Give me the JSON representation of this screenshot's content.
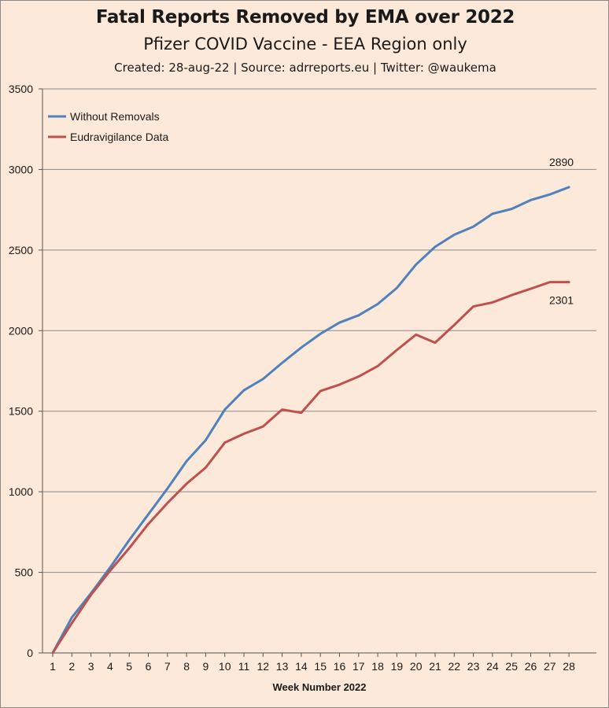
{
  "chart_data": {
    "type": "line",
    "title": "Fatal Reports Removed by EMA over 2022",
    "subtitle": "Pfizer COVID Vaccine - EEA Region only",
    "credit": "Created: 28-aug-22 | Source: adrreports.eu | Twitter: @waukema",
    "xlabel": "Week Number 2022",
    "ylabel": "",
    "ylim": [
      0,
      3500
    ],
    "yticks": [
      0,
      500,
      1000,
      1500,
      2000,
      2500,
      3000,
      3500
    ],
    "x": [
      1,
      2,
      3,
      4,
      5,
      6,
      7,
      8,
      9,
      10,
      11,
      12,
      13,
      14,
      15,
      16,
      17,
      18,
      19,
      20,
      21,
      22,
      23,
      24,
      25,
      26,
      27,
      28
    ],
    "grid": "horizontal",
    "legend_position": "top-left",
    "series": [
      {
        "name": "Without Removals",
        "color": "#4f81bd",
        "values": [
          0,
          220,
          370,
          530,
          700,
          860,
          1020,
          1190,
          1320,
          1510,
          1630,
          1700,
          1800,
          1895,
          1980,
          2050,
          2095,
          2165,
          2265,
          2410,
          2520,
          2595,
          2645,
          2725,
          2755,
          2810,
          2845,
          2890
        ],
        "end_label": "2890"
      },
      {
        "name": "Eudravigilance Data",
        "color": "#c0504d",
        "values": [
          0,
          185,
          360,
          510,
          650,
          800,
          930,
          1050,
          1150,
          1305,
          1360,
          1405,
          1510,
          1490,
          1625,
          1665,
          1715,
          1780,
          1880,
          1975,
          1925,
          2035,
          2150,
          2175,
          2220,
          2260,
          2301,
          2301
        ],
        "end_label": "2301"
      }
    ]
  }
}
